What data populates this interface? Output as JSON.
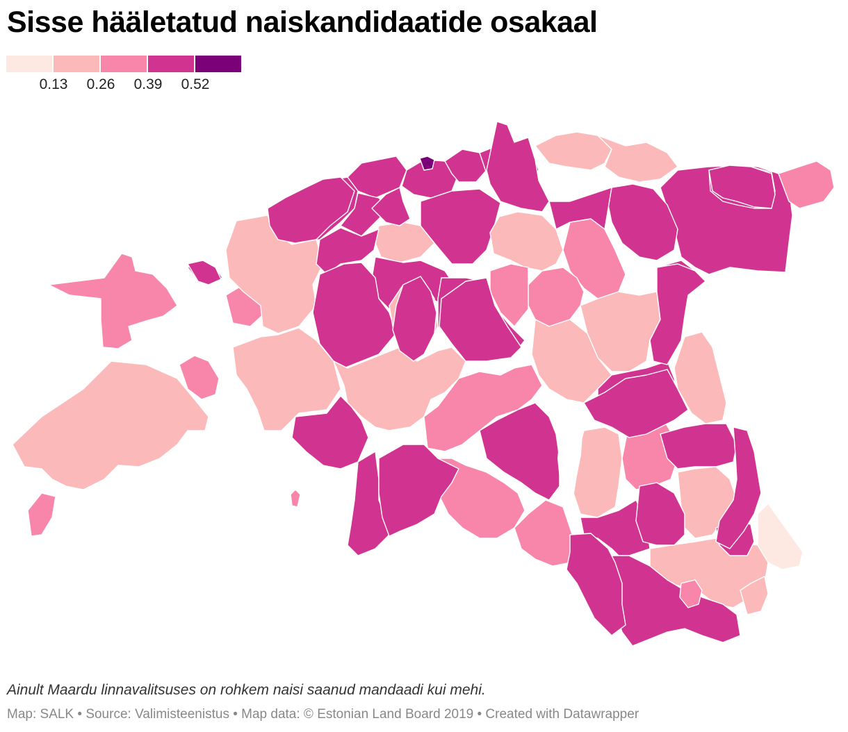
{
  "title": "Sisse hääletatud naiskandidaatide osakaal",
  "legend": {
    "colors": [
      "#fde9e1",
      "#fbbab9",
      "#f886ab",
      "#d13490",
      "#7a0177"
    ],
    "ticks": [
      "0.13",
      "0.26",
      "0.39",
      "0.52"
    ]
  },
  "regions": [
    {
      "name": "saaremaa",
      "cls": 1
    },
    {
      "name": "hiiumaa",
      "cls": 2
    },
    {
      "name": "muhu",
      "cls": 2
    },
    {
      "name": "vormsi",
      "cls": 2
    },
    {
      "name": "ruhnu",
      "cls": 2
    },
    {
      "name": "kihnu",
      "cls": 2
    },
    {
      "name": "naissaar-group",
      "cls": 3
    },
    {
      "name": "laane-nigula",
      "cls": 3
    },
    {
      "name": "haapsalu",
      "cls": 1
    },
    {
      "name": "lihula",
      "cls": 1
    },
    {
      "name": "lahe-harju-west",
      "cls": 3
    },
    {
      "name": "saue-keila",
      "cls": 3
    },
    {
      "name": "tallinn",
      "cls": 3
    },
    {
      "name": "maardu",
      "cls": 4
    },
    {
      "name": "viimsi",
      "cls": 3
    },
    {
      "name": "joelahtme",
      "cls": 3
    },
    {
      "name": "kuusalu",
      "cls": 3
    },
    {
      "name": "harju-south",
      "cls": 1
    },
    {
      "name": "raplamaa",
      "cls": 3
    },
    {
      "name": "karksi",
      "cls": 3
    },
    {
      "name": "paide-area",
      "cls": 3
    },
    {
      "name": "paide-central",
      "cls": 3
    },
    {
      "name": "lahemaa",
      "cls": 1
    },
    {
      "name": "haljala",
      "cls": 1
    },
    {
      "name": "kunda",
      "cls": 1
    },
    {
      "name": "viru-nigula",
      "cls": 2
    },
    {
      "name": "ida-viru-west",
      "cls": 2
    },
    {
      "name": "kohtla-jarve",
      "cls": 3
    },
    {
      "name": "narva",
      "cls": 2
    },
    {
      "name": "narva-joesuu",
      "cls": 3
    },
    {
      "name": "alutaguse",
      "cls": 3
    },
    {
      "name": "tudulinna",
      "cls": 3
    },
    {
      "name": "rakvere-area",
      "cls": 3
    },
    {
      "name": "vaike-maarja",
      "cls": 1
    },
    {
      "name": "jogeva-area",
      "cls": 1
    },
    {
      "name": "mustvee",
      "cls": 1
    },
    {
      "name": "tartu-region",
      "cls": 3
    },
    {
      "name": "kambja",
      "cls": 1
    },
    {
      "name": "tartu-city",
      "cls": 2
    },
    {
      "name": "kastre",
      "cls": 3
    },
    {
      "name": "parnumaa-west",
      "cls": 1
    },
    {
      "name": "parnu-city",
      "cls": 3
    },
    {
      "name": "tori",
      "cls": 2
    },
    {
      "name": "saarde",
      "cls": 2
    },
    {
      "name": "hadeste",
      "cls": 3
    },
    {
      "name": "viljandi",
      "cls": 1
    },
    {
      "name": "mulgi",
      "cls": 2
    },
    {
      "name": "tarvastu",
      "cls": 3
    },
    {
      "name": "otepaa",
      "cls": 2
    },
    {
      "name": "elva",
      "cls": 1
    },
    {
      "name": "valga",
      "cls": 3
    },
    {
      "name": "setomaa",
      "cls": 0
    },
    {
      "name": "vorumaa",
      "cls": 1
    },
    {
      "name": "rapina",
      "cls": 1
    },
    {
      "name": "kanepi",
      "cls": 3
    },
    {
      "name": "antsla",
      "cls": 2
    },
    {
      "name": "rouge",
      "cls": 3
    },
    {
      "name": "dark-1",
      "cls": 3
    },
    {
      "name": "dark-2",
      "cls": 3
    },
    {
      "name": "dark-3",
      "cls": 3
    },
    {
      "name": "dark-4",
      "cls": 3
    },
    {
      "name": "dark-5",
      "cls": 3
    },
    {
      "name": "dark-6",
      "cls": 3
    },
    {
      "name": "dark-7",
      "cls": 3
    },
    {
      "name": "dark-8",
      "cls": 3
    },
    {
      "name": "dark-9",
      "cls": 3
    },
    {
      "name": "dark-10",
      "cls": 3
    },
    {
      "name": "dark-11",
      "cls": 3
    },
    {
      "name": "dark-12",
      "cls": 3
    },
    {
      "name": "dark-13",
      "cls": 3
    }
  ],
  "note": "Ainult Maardu linnavalitsuses on rohkem naisi saanud mandaadi kui mehi.",
  "footer": "Map: SALK • Source: Valimisteenistus • Map data: © Estonian Land Board 2019 • Created with Datawrapper"
}
